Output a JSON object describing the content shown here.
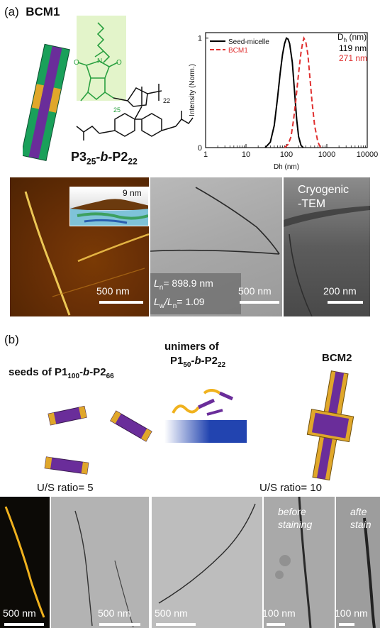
{
  "panel_a": {
    "letter": "(a)",
    "name": "BCM1",
    "polymer": {
      "p1": "P3",
      "sub1": "25",
      "mid": "-b-",
      "p2": "P2",
      "sub2": "22"
    },
    "repeat_labels": [
      "25",
      "22"
    ]
  },
  "chart_data": {
    "type": "line",
    "xlabel": "Dh (nm)",
    "ylabel": "Intensity (Norm.)",
    "x_scale": "log",
    "xlim": [
      1,
      10000
    ],
    "ylim": [
      0,
      1.05
    ],
    "x_ticks": [
      "1",
      "10",
      "100",
      "1000",
      "10000"
    ],
    "y_ticks": [
      "0",
      "1"
    ],
    "legend_position": "top-left",
    "series": [
      {
        "name": "Seed-micelle",
        "color": "#000000",
        "style": "solid",
        "x": [
          30,
          40,
          50,
          60,
          70,
          80,
          90,
          100,
          110,
          120,
          140,
          160,
          180,
          200,
          230,
          260
        ],
        "y": [
          0.0,
          0.05,
          0.2,
          0.45,
          0.68,
          0.85,
          0.95,
          1.0,
          0.99,
          0.95,
          0.78,
          0.5,
          0.25,
          0.1,
          0.02,
          0.0
        ]
      },
      {
        "name": "BCM1",
        "color": "#e03030",
        "style": "dashed",
        "x": [
          90,
          110,
          130,
          150,
          170,
          190,
          210,
          230,
          250,
          270,
          300,
          340,
          380,
          430,
          500,
          600,
          700
        ],
        "y": [
          0.0,
          0.03,
          0.1,
          0.25,
          0.42,
          0.6,
          0.75,
          0.87,
          0.95,
          1.0,
          0.97,
          0.85,
          0.65,
          0.42,
          0.2,
          0.05,
          0.0
        ]
      }
    ],
    "dh_header": "D",
    "dh_header_sub": "h",
    "dh_header_unit": " (nm)",
    "dh_values": [
      {
        "text": "119 nm",
        "color": "#000000"
      },
      {
        "text": "271 nm",
        "color": "#e03030"
      }
    ]
  },
  "micrographs_a": {
    "afm_scale": "500 nm",
    "afm_inset_height": "9 nm",
    "tem_scale": "500 nm",
    "ln_label": "L",
    "ln_sub": "n",
    "ln_value": "= 898.9 nm",
    "lw_label": "L",
    "lw_sub": "w",
    "lw_mid": "/L",
    "lw_sub2": "n",
    "lw_value": "= 1.09",
    "cryo_line1": "Cryogenic",
    "cryo_line2": "-TEM",
    "cryo_scale": "200 nm"
  },
  "panel_b": {
    "letter": "(b)",
    "seeds": {
      "pre": "seeds of P1",
      "sub1": "100",
      "mid": "-b-",
      "p2": "P2",
      "sub2": "66"
    },
    "unimers_line1": "unimers of",
    "unimers": {
      "p1": "P1",
      "sub1": "50",
      "mid": "-b-",
      "p2": "P2",
      "sub2": "22"
    },
    "name": "BCM2",
    "ratio5": "U/S ratio= 5",
    "ratio10": "U/S ratio= 10",
    "scales": [
      "500 nm",
      "500 nm",
      "500 nm",
      "100 nm",
      "100 nm"
    ],
    "before_line1": "before",
    "before_line2": "staining",
    "after_line1": "afte",
    "after_line2": "stain"
  },
  "colors": {
    "green": "#1aa05a",
    "purple": "#6a2d9a",
    "gold": "#e0a72a",
    "chem_green": "#2aa040",
    "red_dash": "#e03030",
    "blue_gradient": "#2244b0"
  }
}
